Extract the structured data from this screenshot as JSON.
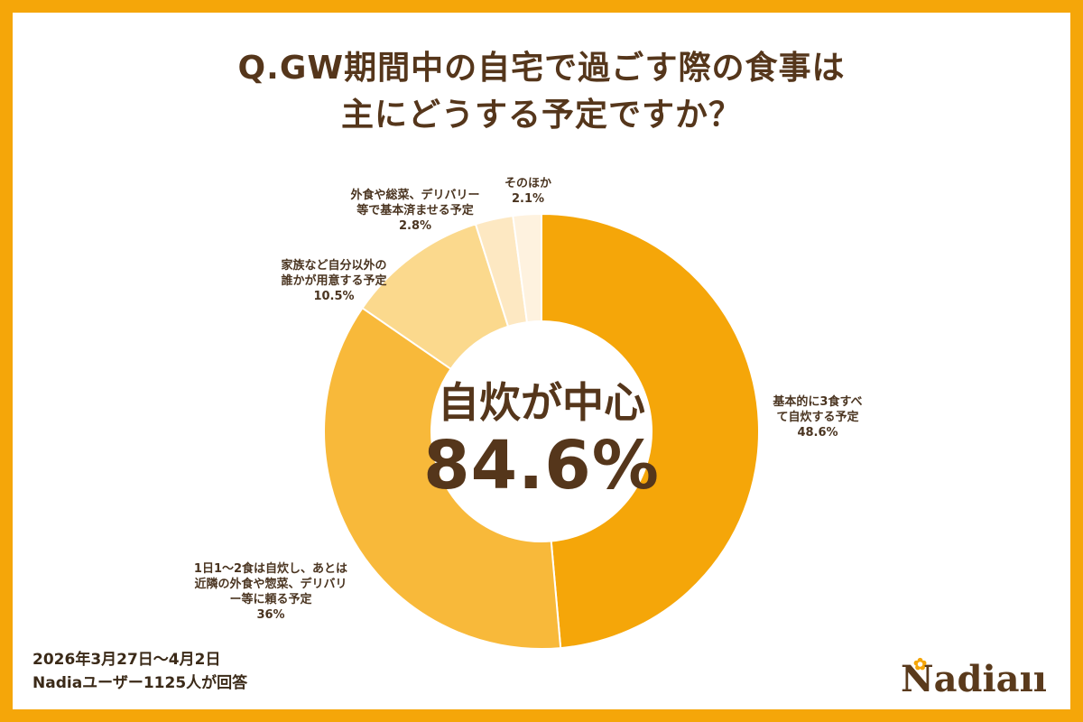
{
  "title": {
    "line1": "Q.GW期間中の自宅で過ごす際の食事は",
    "line2": "主にどうする予定ですか？"
  },
  "center": {
    "label": "自炊が中心",
    "value": "84.6%"
  },
  "chart_data": {
    "type": "pie",
    "variant": "donut",
    "categories": [
      "基本的に3食すべて自炊する予定",
      "1日1〜2食は自炊し、あとは近隣の外食や惣菜、デリバリー等に頼る予定",
      "家族など自分以外の誰かが用意する予定",
      "外食や総菜、デリバリー等で基本済ませる予定",
      "そのほか"
    ],
    "values": [
      48.6,
      36,
      10.5,
      2.8,
      2.1
    ],
    "labels": [
      {
        "lines": [
          "基本的に3食すべ",
          "て自炊する予定"
        ],
        "value": "48.6%"
      },
      {
        "lines": [
          "1日1〜2食は自炊し、あとは",
          "近隣の外食や惣菜、デリバリ",
          "ー等に頼る予定"
        ],
        "value": "36%"
      },
      {
        "lines": [
          "家族など自分以外の",
          "誰かが用意する予定"
        ],
        "value": "10.5%"
      },
      {
        "lines": [
          "外食や総菜、デリバリー",
          "等で基本済ませる予定"
        ],
        "value": "2.8%"
      },
      {
        "lines": [
          "そのほか"
        ],
        "value": "2.1%"
      }
    ],
    "colors": [
      "#f5a609",
      "#f8b93a",
      "#fbd98d",
      "#fde8c2",
      "#fef2df"
    ],
    "start": "top",
    "direction": "clockwise"
  },
  "footer": {
    "date": "2026年3月27日〜4月2日",
    "respondents": "Nadiaユーザー1125人が回答"
  },
  "logo": {
    "text": "Nadia",
    "utensils": "ıı"
  }
}
